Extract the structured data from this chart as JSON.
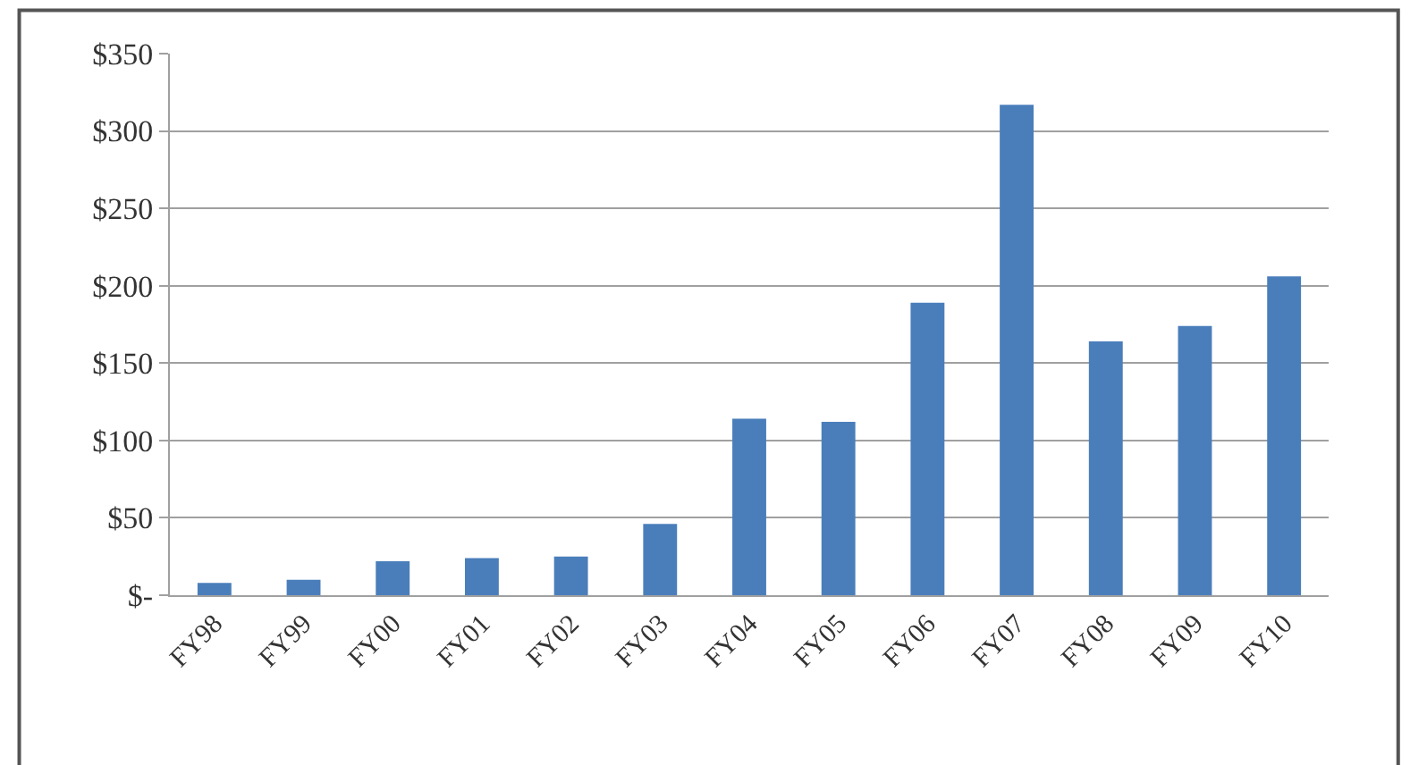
{
  "chart_data": {
    "type": "bar",
    "categories": [
      "FY98",
      "FY99",
      "FY00",
      "FY01",
      "FY02",
      "FY03",
      "FY04",
      "FY05",
      "FY06",
      "FY07",
      "FY08",
      "FY09",
      "FY10"
    ],
    "values": [
      8,
      10,
      22,
      24,
      25,
      46,
      114,
      112,
      189,
      317,
      164,
      174,
      206
    ],
    "color": "#4a7ebb",
    "ylim": [
      0,
      350
    ],
    "yticks": [
      {
        "value": 0,
        "label": "$-"
      },
      {
        "value": 50,
        "label": "$50"
      },
      {
        "value": 100,
        "label": "$100"
      },
      {
        "value": 150,
        "label": "$150"
      },
      {
        "value": 200,
        "label": "$200"
      },
      {
        "value": 250,
        "label": "$250"
      },
      {
        "value": 300,
        "label": "$300"
      },
      {
        "value": 350,
        "label": "$350"
      }
    ],
    "grid": "y",
    "legend": false
  }
}
